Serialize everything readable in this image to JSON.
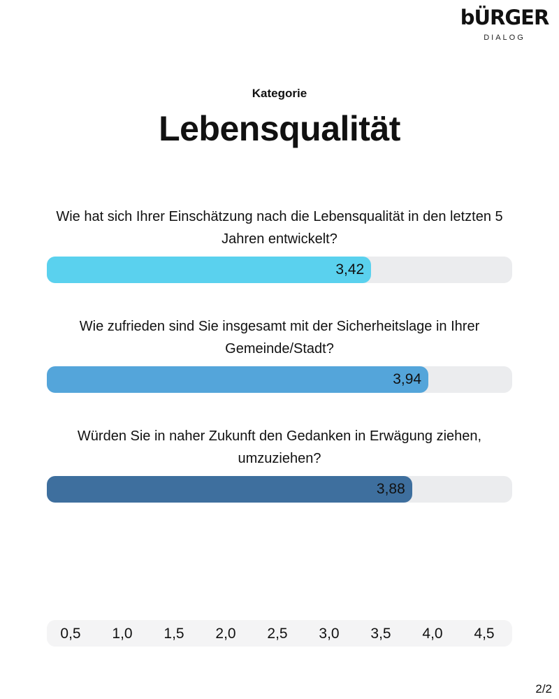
{
  "logo": {
    "brand": "bÜRGER",
    "sub": "DIALOG"
  },
  "header": {
    "kategorie_label": "Kategorie",
    "title": "Lebensqualität"
  },
  "chart_data": {
    "type": "bar",
    "orientation": "horizontal",
    "categories": [
      "Wie hat sich Ihrer Einschätzung nach die Lebensqualität in den letzten 5 Jahren entwickelt?",
      "Wie zufrieden sind Sie insgesamt mit der Sicherheitslage in Ihrer Gemeinde/Stadt?",
      "Würden Sie in naher Zukunft den Gedanken in Erwägung ziehen, umzuziehen?"
    ],
    "values": [
      3.42,
      3.94,
      3.88
    ],
    "labels": [
      "3,42",
      "3,94",
      "3,88"
    ],
    "fill_fraction": [
      0.697,
      0.82,
      0.785
    ],
    "colors": [
      "#5ad1ee",
      "#54a5da",
      "#3e6f9e"
    ],
    "track_color": "#ebecee",
    "x_ticks": [
      "0,5",
      "1,0",
      "1,5",
      "2,0",
      "2,5",
      "3,0",
      "3,5",
      "4,0",
      "4,5"
    ],
    "tick_values": [
      0.5,
      1.0,
      1.5,
      2.0,
      2.5,
      3.0,
      3.5,
      4.0,
      4.5
    ]
  },
  "footer": {
    "page": "2/2"
  }
}
